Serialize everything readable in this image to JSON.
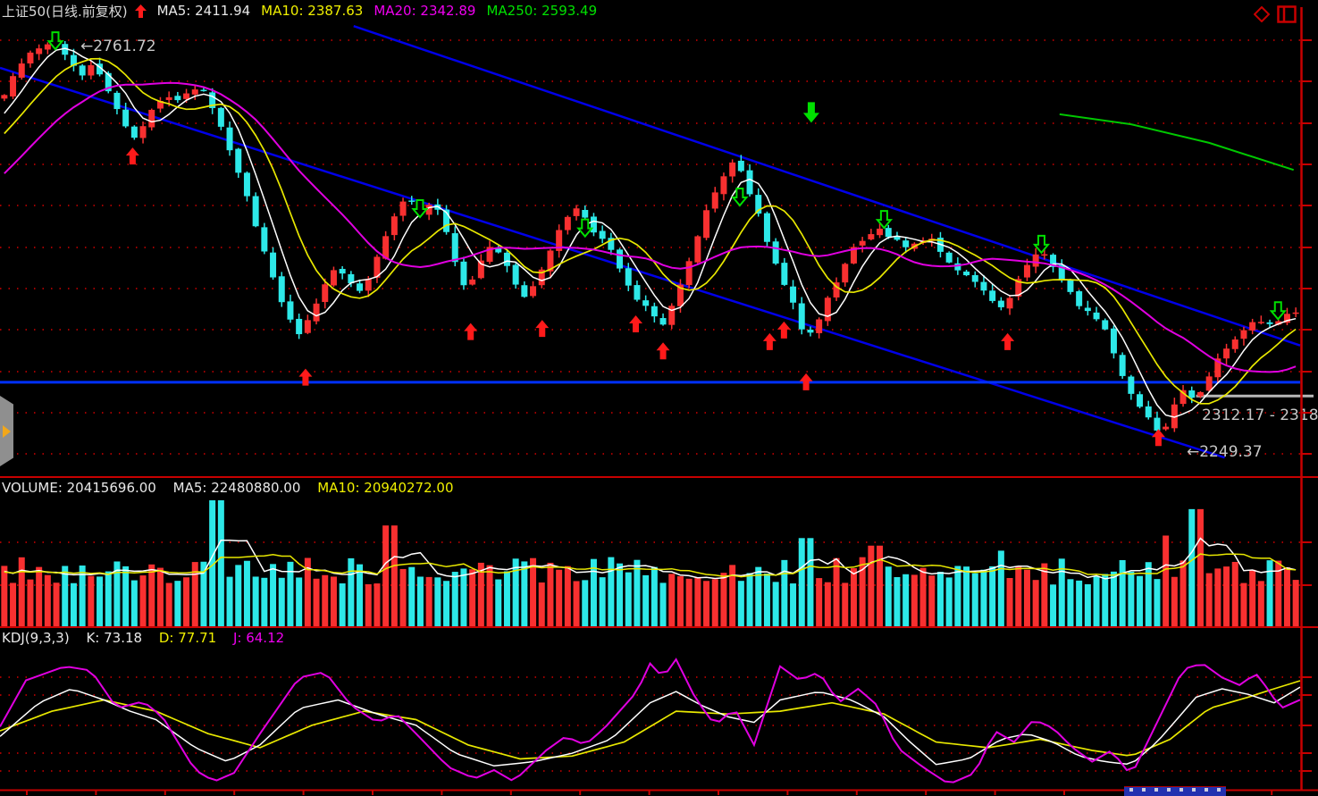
{
  "header": {
    "title": "上证50(日线.前复权)",
    "ma5": "MA5: 2411.94",
    "ma10": "MA10: 2387.63",
    "ma20": "MA20: 2342.89",
    "ma250": "MA250: 2593.49"
  },
  "price_pane": {
    "high_annotation": "←2761.72",
    "gap_annotation": "2312.17 - 2318",
    "low_annotation": "←2249.37"
  },
  "volume_pane": {
    "volume_label": "VOLUME: 20415696.00",
    "ma5_label": "MA5: 22480880.00",
    "ma10_label": "MA10: 20940272.00"
  },
  "kdj_pane": {
    "kdj_label": "KDJ(9,3,3)",
    "k_label": "K: 73.18",
    "d_label": "D: 77.71",
    "j_label": "J: 64.12"
  },
  "colors": {
    "up": "#f83030",
    "down": "#2de8e8",
    "ma5": "#ffffff",
    "ma10": "#e8e800",
    "ma20": "#e000e0",
    "ma250": "#00c800",
    "grid": "#a00000",
    "axis": "#c80000",
    "trendline": "#0000e8",
    "support": "#0030ff",
    "gap_line": "#b8b8b8",
    "annotation": "#c8c8c8",
    "buy_arrow": "#ff1a1a",
    "sell_arrow": "#00e000"
  },
  "chart_data": {
    "type": "candlestick",
    "title": "上证50(日线.前复权)",
    "panes": [
      "price",
      "volume",
      "kdj"
    ],
    "legend_position": "top-left-of-each-pane",
    "grid": "dotted-red-horizontal",
    "price": {
      "ylim": [
        2197,
        2785
      ],
      "ma_values": {
        "ma5": 2411.94,
        "ma10": 2387.63,
        "ma20": 2342.89,
        "ma250": 2593.49
      },
      "high_label_value": 2761.72,
      "low_label_value": 2249.37,
      "gap_range": [
        2312.17,
        2318
      ],
      "support_level": 2318.5,
      "candle_count": 150,
      "close_keypoints": [
        [
          0.003,
          2690
        ],
        [
          0.017,
          2735
        ],
        [
          0.031,
          2750
        ],
        [
          0.043,
          2760
        ],
        [
          0.052,
          2735
        ],
        [
          0.062,
          2715
        ],
        [
          0.072,
          2728
        ],
        [
          0.081,
          2700
        ],
        [
          0.091,
          2665
        ],
        [
          0.102,
          2628
        ],
        [
          0.11,
          2650
        ],
        [
          0.118,
          2672
        ],
        [
          0.128,
          2692
        ],
        [
          0.137,
          2682
        ],
        [
          0.148,
          2700
        ],
        [
          0.157,
          2692
        ],
        [
          0.166,
          2662
        ],
        [
          0.177,
          2618
        ],
        [
          0.186,
          2578
        ],
        [
          0.194,
          2538
        ],
        [
          0.203,
          2488
        ],
        [
          0.213,
          2438
        ],
        [
          0.223,
          2398
        ],
        [
          0.232,
          2372
        ],
        [
          0.239,
          2408
        ],
        [
          0.249,
          2440
        ],
        [
          0.258,
          2468
        ],
        [
          0.268,
          2452
        ],
        [
          0.276,
          2432
        ],
        [
          0.286,
          2462
        ],
        [
          0.296,
          2502
        ],
        [
          0.305,
          2542
        ],
        [
          0.313,
          2558
        ],
        [
          0.323,
          2538
        ],
        [
          0.333,
          2552
        ],
        [
          0.342,
          2522
        ],
        [
          0.351,
          2468
        ],
        [
          0.359,
          2432
        ],
        [
          0.368,
          2470
        ],
        [
          0.378,
          2498
        ],
        [
          0.388,
          2478
        ],
        [
          0.397,
          2442
        ],
        [
          0.406,
          2428
        ],
        [
          0.416,
          2462
        ],
        [
          0.426,
          2502
        ],
        [
          0.436,
          2528
        ],
        [
          0.445,
          2546
        ],
        [
          0.454,
          2518
        ],
        [
          0.465,
          2498
        ],
        [
          0.474,
          2478
        ],
        [
          0.484,
          2442
        ],
        [
          0.492,
          2424
        ],
        [
          0.502,
          2408
        ],
        [
          0.51,
          2392
        ],
        [
          0.52,
          2428
        ],
        [
          0.529,
          2472
        ],
        [
          0.539,
          2522
        ],
        [
          0.548,
          2558
        ],
        [
          0.558,
          2588
        ],
        [
          0.566,
          2606
        ],
        [
          0.575,
          2572
        ],
        [
          0.584,
          2532
        ],
        [
          0.594,
          2482
        ],
        [
          0.602,
          2450
        ],
        [
          0.612,
          2418
        ],
        [
          0.62,
          2368
        ],
        [
          0.63,
          2402
        ],
        [
          0.639,
          2438
        ],
        [
          0.649,
          2468
        ],
        [
          0.658,
          2498
        ],
        [
          0.668,
          2508
        ],
        [
          0.678,
          2518
        ],
        [
          0.687,
          2504
        ],
        [
          0.697,
          2490
        ],
        [
          0.706,
          2496
        ],
        [
          0.716,
          2504
        ],
        [
          0.726,
          2480
        ],
        [
          0.735,
          2462
        ],
        [
          0.745,
          2455
        ],
        [
          0.755,
          2440
        ],
        [
          0.764,
          2424
        ],
        [
          0.774,
          2412
        ],
        [
          0.782,
          2448
        ],
        [
          0.792,
          2478
        ],
        [
          0.801,
          2492
        ],
        [
          0.811,
          2468
        ],
        [
          0.821,
          2440
        ],
        [
          0.83,
          2420
        ],
        [
          0.84,
          2402
        ],
        [
          0.849,
          2390
        ],
        [
          0.859,
          2342
        ],
        [
          0.867,
          2312
        ],
        [
          0.877,
          2288
        ],
        [
          0.885,
          2268
        ],
        [
          0.893,
          2252
        ],
        [
          0.902,
          2282
        ],
        [
          0.91,
          2308
        ],
        [
          0.918,
          2294
        ],
        [
          0.928,
          2322
        ],
        [
          0.937,
          2352
        ],
        [
          0.947,
          2366
        ],
        [
          0.957,
          2386
        ],
        [
          0.966,
          2402
        ],
        [
          0.976,
          2394
        ],
        [
          0.986,
          2400
        ],
        [
          0.995,
          2412
        ]
      ],
      "ma250_points": [
        [
          0.815,
          2665
        ],
        [
          0.87,
          2652
        ],
        [
          0.93,
          2628
        ],
        [
          0.995,
          2593
        ]
      ],
      "trendlines": [
        {
          "from": [
            0.0,
            2725
          ],
          "to": [
            0.942,
            2221
          ]
        },
        {
          "from": [
            0.272,
            2779
          ],
          "to": [
            1.0,
            2366
          ]
        }
      ],
      "buy_signals": [
        [
          0.102,
          2622
        ],
        [
          0.235,
          2336
        ],
        [
          0.362,
          2395
        ],
        [
          0.417,
          2399
        ],
        [
          0.489,
          2405
        ],
        [
          0.51,
          2370
        ],
        [
          0.592,
          2382
        ],
        [
          0.603,
          2397
        ],
        [
          0.62,
          2330
        ],
        [
          0.775,
          2382
        ],
        [
          0.891,
          2258
        ]
      ],
      "sell_signals": [
        [
          0.0426,
          2749
        ],
        [
          0.323,
          2532
        ],
        [
          0.45,
          2507
        ],
        [
          0.569,
          2547
        ],
        [
          0.68,
          2518
        ],
        [
          0.801,
          2486
        ],
        [
          0.983,
          2400
        ]
      ],
      "big_sell_signal": [
        0.624,
        2654
      ]
    },
    "volume": {
      "current": 20415696.0,
      "ma5": 22480880.0,
      "ma10": 20940272.0,
      "spikes": [
        [
          0.168,
          1.0
        ],
        [
          0.3,
          0.8
        ],
        [
          0.62,
          0.7
        ],
        [
          0.672,
          0.64
        ],
        [
          0.77,
          0.6
        ],
        [
          0.896,
          0.72
        ],
        [
          0.921,
          0.93
        ]
      ]
    },
    "kdj": {
      "params": "9,3,3",
      "k": 73.18,
      "d": 77.71,
      "j": 64.12,
      "ylim": [
        0,
        100
      ],
      "k_points": [
        [
          0,
          38
        ],
        [
          0.03,
          62
        ],
        [
          0.055,
          72
        ],
        [
          0.08,
          64
        ],
        [
          0.1,
          56
        ],
        [
          0.12,
          50
        ],
        [
          0.15,
          30
        ],
        [
          0.175,
          20
        ],
        [
          0.2,
          32
        ],
        [
          0.23,
          58
        ],
        [
          0.26,
          64
        ],
        [
          0.29,
          54
        ],
        [
          0.32,
          46
        ],
        [
          0.35,
          26
        ],
        [
          0.38,
          17
        ],
        [
          0.41,
          20
        ],
        [
          0.44,
          26
        ],
        [
          0.47,
          36
        ],
        [
          0.5,
          62
        ],
        [
          0.52,
          70
        ],
        [
          0.54,
          60
        ],
        [
          0.56,
          52
        ],
        [
          0.58,
          48
        ],
        [
          0.6,
          64
        ],
        [
          0.63,
          70
        ],
        [
          0.655,
          64
        ],
        [
          0.68,
          52
        ],
        [
          0.7,
          34
        ],
        [
          0.72,
          18
        ],
        [
          0.745,
          22
        ],
        [
          0.77,
          36
        ],
        [
          0.79,
          40
        ],
        [
          0.81,
          34
        ],
        [
          0.83,
          24
        ],
        [
          0.85,
          20
        ],
        [
          0.87,
          18
        ],
        [
          0.89,
          34
        ],
        [
          0.92,
          66
        ],
        [
          0.94,
          72
        ],
        [
          0.96,
          68
        ],
        [
          0.98,
          62
        ],
        [
          1,
          73.18
        ]
      ],
      "d_points": [
        [
          0,
          42
        ],
        [
          0.04,
          56
        ],
        [
          0.08,
          64
        ],
        [
          0.12,
          56
        ],
        [
          0.16,
          40
        ],
        [
          0.2,
          30
        ],
        [
          0.24,
          46
        ],
        [
          0.28,
          56
        ],
        [
          0.32,
          50
        ],
        [
          0.36,
          32
        ],
        [
          0.4,
          22
        ],
        [
          0.44,
          24
        ],
        [
          0.48,
          34
        ],
        [
          0.52,
          56
        ],
        [
          0.56,
          54
        ],
        [
          0.6,
          56
        ],
        [
          0.64,
          62
        ],
        [
          0.68,
          54
        ],
        [
          0.72,
          34
        ],
        [
          0.76,
          30
        ],
        [
          0.8,
          36
        ],
        [
          0.84,
          28
        ],
        [
          0.87,
          24
        ],
        [
          0.9,
          36
        ],
        [
          0.93,
          58
        ],
        [
          0.96,
          66
        ],
        [
          0.98,
          72
        ],
        [
          1,
          77.71
        ]
      ],
      "j_points": [
        [
          0,
          45
        ],
        [
          0.02,
          78
        ],
        [
          0.05,
          88
        ],
        [
          0.07,
          85
        ],
        [
          0.09,
          58
        ],
        [
          0.11,
          63
        ],
        [
          0.125,
          52
        ],
        [
          0.15,
          14
        ],
        [
          0.165,
          6
        ],
        [
          0.18,
          12
        ],
        [
          0.2,
          40
        ],
        [
          0.23,
          80
        ],
        [
          0.25,
          84
        ],
        [
          0.27,
          60
        ],
        [
          0.29,
          48
        ],
        [
          0.305,
          54
        ],
        [
          0.32,
          40
        ],
        [
          0.345,
          16
        ],
        [
          0.365,
          8
        ],
        [
          0.38,
          14
        ],
        [
          0.395,
          6
        ],
        [
          0.42,
          28
        ],
        [
          0.435,
          38
        ],
        [
          0.45,
          32
        ],
        [
          0.465,
          44
        ],
        [
          0.49,
          70
        ],
        [
          0.5,
          90
        ],
        [
          0.51,
          80
        ],
        [
          0.52,
          93
        ],
        [
          0.535,
          65
        ],
        [
          0.55,
          46
        ],
        [
          0.565,
          58
        ],
        [
          0.58,
          32
        ],
        [
          0.6,
          88
        ],
        [
          0.615,
          78
        ],
        [
          0.63,
          84
        ],
        [
          0.645,
          62
        ],
        [
          0.66,
          72
        ],
        [
          0.675,
          60
        ],
        [
          0.69,
          30
        ],
        [
          0.71,
          16
        ],
        [
          0.73,
          4
        ],
        [
          0.75,
          12
        ],
        [
          0.765,
          42
        ],
        [
          0.78,
          34
        ],
        [
          0.795,
          50
        ],
        [
          0.81,
          44
        ],
        [
          0.825,
          30
        ],
        [
          0.84,
          20
        ],
        [
          0.855,
          28
        ],
        [
          0.87,
          10
        ],
        [
          0.89,
          48
        ],
        [
          0.91,
          86
        ],
        [
          0.925,
          90
        ],
        [
          0.94,
          80
        ],
        [
          0.955,
          74
        ],
        [
          0.965,
          84
        ],
        [
          0.975,
          72
        ],
        [
          0.985,
          58
        ],
        [
          1,
          64.12
        ]
      ]
    }
  }
}
